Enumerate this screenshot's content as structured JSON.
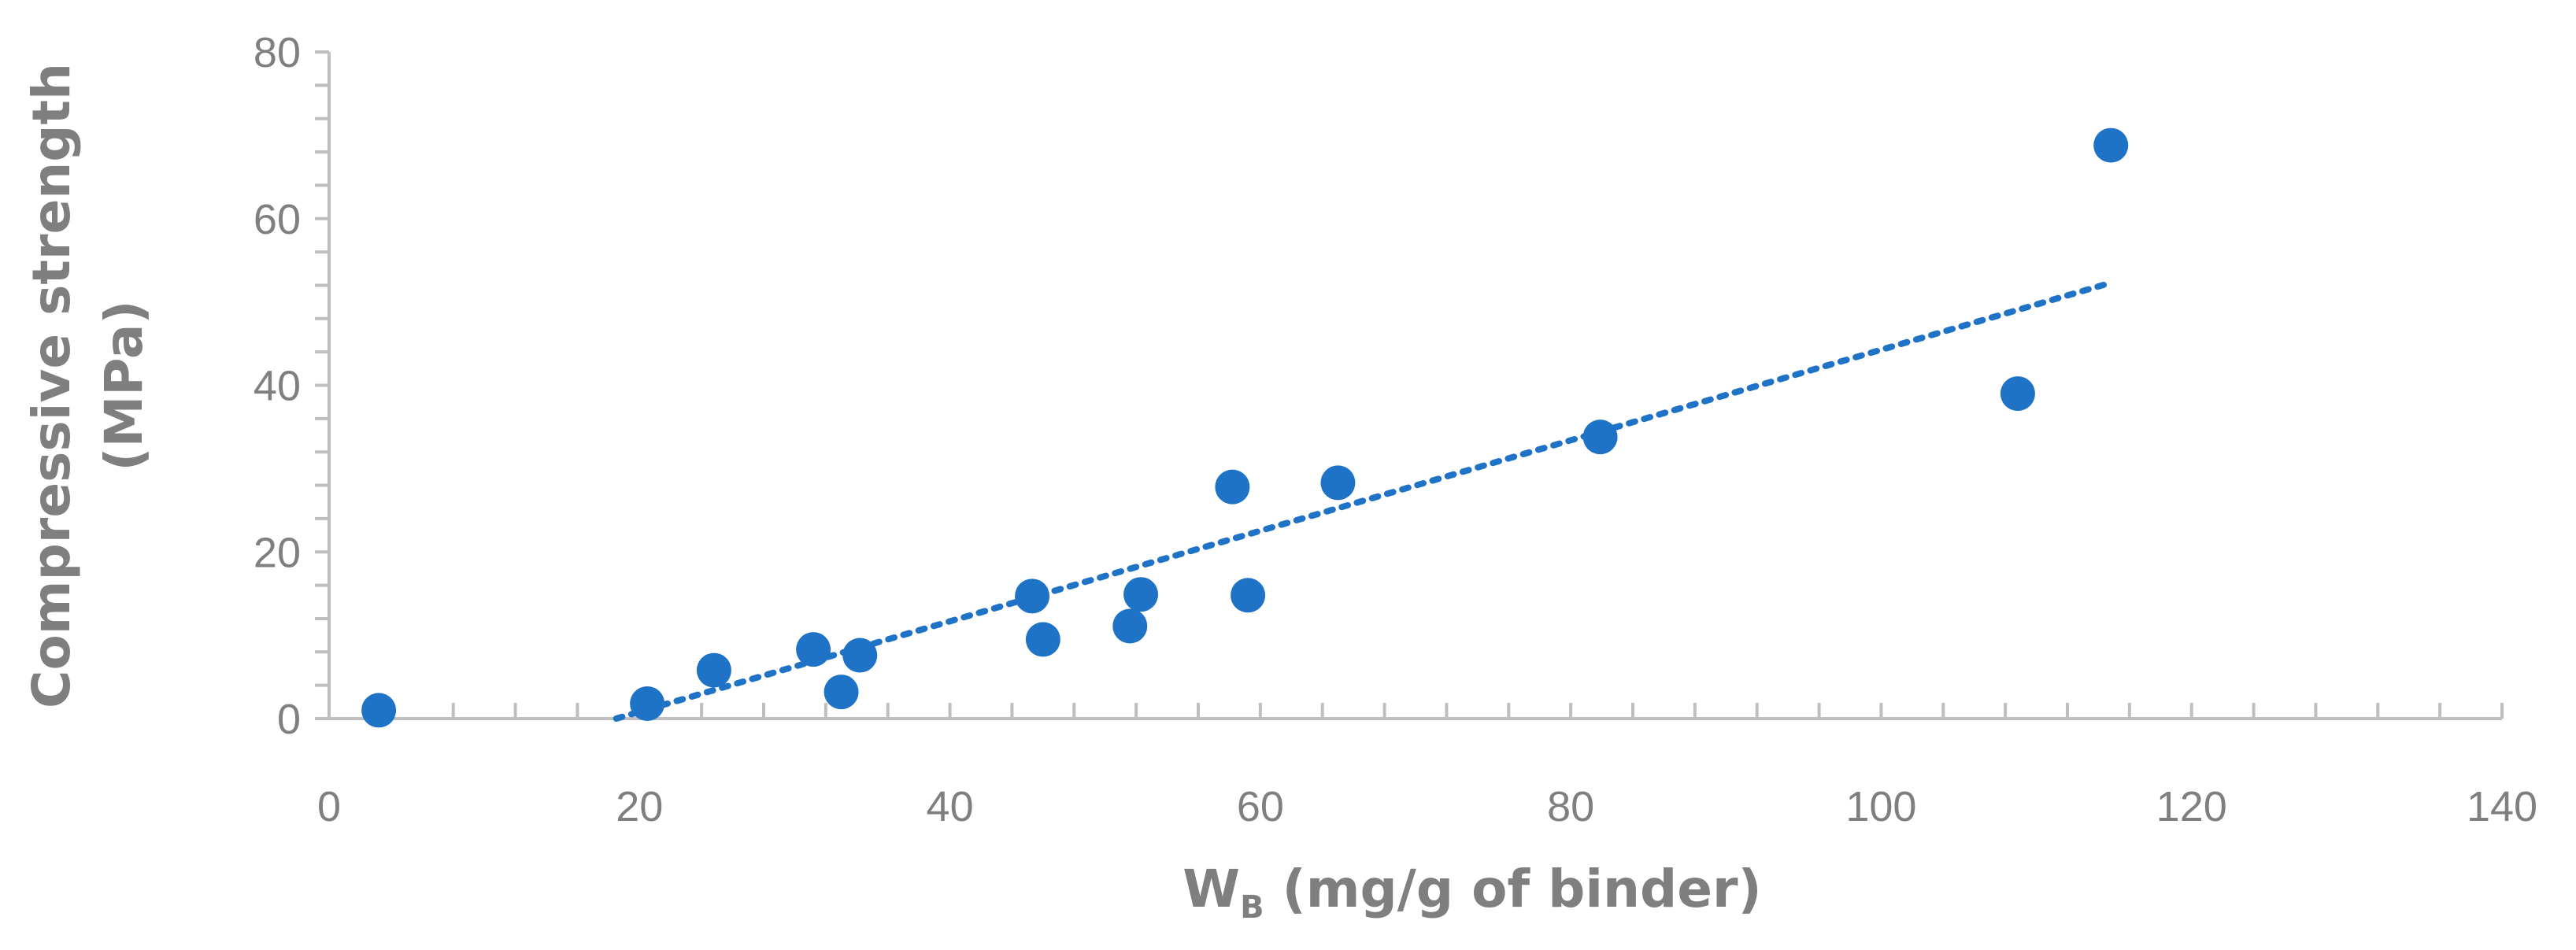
{
  "chart_data": {
    "type": "scatter",
    "title": "",
    "xlabel": {
      "main": "W",
      "subscript": "B",
      "rest": " (mg/g of binder)"
    },
    "ylabel": [
      "Compressive strength",
      "(MPa)"
    ],
    "xlim": [
      0,
      140
    ],
    "ylim": [
      0,
      80
    ],
    "x_ticks": [
      0,
      20,
      40,
      60,
      80,
      100,
      120,
      140
    ],
    "y_ticks": [
      0,
      20,
      40,
      60,
      80
    ],
    "grid": false,
    "legend": "none",
    "point_color": "#1f73c7",
    "axis_color": "#bfbfbf",
    "text_color": "#7f7f7f",
    "series": [
      {
        "points": [
          [
            3.2,
            1.0
          ],
          [
            20.5,
            1.8
          ],
          [
            24.8,
            5.8
          ],
          [
            31.2,
            8.3
          ],
          [
            33.0,
            3.2
          ],
          [
            34.2,
            7.6
          ],
          [
            45.3,
            14.7
          ],
          [
            46.0,
            9.5
          ],
          [
            51.6,
            11.1
          ],
          [
            52.3,
            14.9
          ],
          [
            58.2,
            27.8
          ],
          [
            59.2,
            14.8
          ],
          [
            65.0,
            28.3
          ],
          [
            81.9,
            33.8
          ],
          [
            108.8,
            39.0
          ],
          [
            114.8,
            68.8
          ]
        ]
      }
    ],
    "trendline": {
      "style": "dotted",
      "type": "linear",
      "x_range": [
        18.5,
        114.8
      ],
      "y_range": [
        0.0,
        52.3
      ]
    }
  }
}
